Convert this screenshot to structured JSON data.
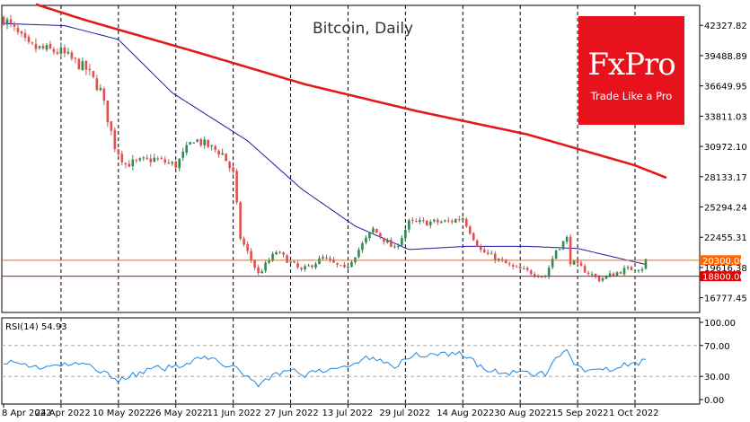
{
  "brand": {
    "name": "FxPro",
    "tagline": "Trade Like a Pro",
    "color": "#e8121d"
  },
  "chart_data": {
    "type": "candlestick",
    "title": "Bitcoin, Daily",
    "price_axis": {
      "ticks": [
        "42327.82",
        "39488.89",
        "36649.95",
        "33811.03",
        "30972.10",
        "28133.17",
        "25294.24",
        "22455.31",
        "19616.38",
        "16777.45"
      ],
      "range": [
        15400,
        44200
      ]
    },
    "levels": [
      {
        "label": "20300.00",
        "value": 20300,
        "color": "#ff6600"
      },
      {
        "label": "18800.00",
        "value": 18800,
        "color": "#e00000"
      }
    ],
    "x_labels": [
      "8 Apr 2022",
      "24 Apr 2022",
      "10 May 2022",
      "26 May 2022",
      "11 Jun 2022",
      "27 Jun 2022",
      "13 Jul 2022",
      "29 Jul 2022",
      "14 Aug 2022",
      "30 Aug 2022",
      "15 Sep 2022",
      "1 Oct 2022"
    ],
    "colors": {
      "up": "#2e8b57",
      "down": "#e05050",
      "ma_slow": "#e41a1a",
      "ma_fast": "#1a1aa0",
      "rsi": "#1e88e5"
    },
    "rsi": {
      "label": "RSI(14) 54.93",
      "ticks": [
        "100.00",
        "70.00",
        "30.00",
        "0.00"
      ],
      "levels": [
        70,
        30
      ]
    },
    "anchors": [
      {
        "date": "2022-04-08",
        "price": 43000
      },
      {
        "date": "2022-04-15",
        "price": 40300
      },
      {
        "date": "2022-04-24",
        "price": 39800
      },
      {
        "date": "2022-05-01",
        "price": 38200
      },
      {
        "date": "2022-05-05",
        "price": 36200
      },
      {
        "date": "2022-05-09",
        "price": 31000
      },
      {
        "date": "2022-05-12",
        "price": 29300
      },
      {
        "date": "2022-05-20",
        "price": 29800
      },
      {
        "date": "2022-05-26",
        "price": 29200
      },
      {
        "date": "2022-05-31",
        "price": 31700
      },
      {
        "date": "2022-06-08",
        "price": 30300
      },
      {
        "date": "2022-06-11",
        "price": 28400
      },
      {
        "date": "2022-06-13",
        "price": 22400
      },
      {
        "date": "2022-06-18",
        "price": 19000
      },
      {
        "date": "2022-06-23",
        "price": 21100
      },
      {
        "date": "2022-06-30",
        "price": 19300
      },
      {
        "date": "2022-07-06",
        "price": 20500
      },
      {
        "date": "2022-07-12",
        "price": 19400
      },
      {
        "date": "2022-07-20",
        "price": 23200
      },
      {
        "date": "2022-07-26",
        "price": 21300
      },
      {
        "date": "2022-07-30",
        "price": 23800
      },
      {
        "date": "2022-08-10",
        "price": 23900
      },
      {
        "date": "2022-08-14",
        "price": 24300
      },
      {
        "date": "2022-08-19",
        "price": 21200
      },
      {
        "date": "2022-08-28",
        "price": 19600
      },
      {
        "date": "2022-09-06",
        "price": 18800
      },
      {
        "date": "2022-09-09",
        "price": 21300
      },
      {
        "date": "2022-09-12",
        "price": 22300
      },
      {
        "date": "2022-09-13",
        "price": 20200
      },
      {
        "date": "2022-09-21",
        "price": 18500
      },
      {
        "date": "2022-09-28",
        "price": 19400
      },
      {
        "date": "2022-10-03",
        "price": 19600
      },
      {
        "date": "2022-10-04",
        "price": 20300
      }
    ],
    "ma_slow": [
      {
        "date": "2022-04-17",
        "price": 44300
      },
      {
        "date": "2022-05-01",
        "price": 42800
      },
      {
        "date": "2022-06-01",
        "price": 39800
      },
      {
        "date": "2022-07-01",
        "price": 36800
      },
      {
        "date": "2022-08-01",
        "price": 34300
      },
      {
        "date": "2022-09-01",
        "price": 32100
      },
      {
        "date": "2022-10-01",
        "price": 29200
      },
      {
        "date": "2022-10-10",
        "price": 28000
      }
    ],
    "ma_fast": [
      {
        "date": "2022-04-08",
        "price": 42500
      },
      {
        "date": "2022-04-25",
        "price": 42300
      },
      {
        "date": "2022-05-10",
        "price": 41000
      },
      {
        "date": "2022-05-25",
        "price": 36000
      },
      {
        "date": "2022-06-15",
        "price": 31500
      },
      {
        "date": "2022-06-30",
        "price": 27000
      },
      {
        "date": "2022-07-15",
        "price": 23500
      },
      {
        "date": "2022-07-30",
        "price": 21300
      },
      {
        "date": "2022-08-15",
        "price": 21600
      },
      {
        "date": "2022-09-01",
        "price": 21600
      },
      {
        "date": "2022-09-15",
        "price": 21400
      },
      {
        "date": "2022-10-04",
        "price": 19900
      }
    ],
    "rsi_anchors": [
      {
        "date": "2022-04-08",
        "value": 50
      },
      {
        "date": "2022-04-18",
        "value": 42
      },
      {
        "date": "2022-05-01",
        "value": 46
      },
      {
        "date": "2022-05-10",
        "value": 26
      },
      {
        "date": "2022-05-20",
        "value": 40
      },
      {
        "date": "2022-05-26",
        "value": 42
      },
      {
        "date": "2022-06-02",
        "value": 56
      },
      {
        "date": "2022-06-10",
        "value": 44
      },
      {
        "date": "2022-06-18",
        "value": 20
      },
      {
        "date": "2022-06-26",
        "value": 40
      },
      {
        "date": "2022-07-01",
        "value": 32
      },
      {
        "date": "2022-07-10",
        "value": 40
      },
      {
        "date": "2022-07-20",
        "value": 56
      },
      {
        "date": "2022-07-26",
        "value": 44
      },
      {
        "date": "2022-08-01",
        "value": 58
      },
      {
        "date": "2022-08-14",
        "value": 60
      },
      {
        "date": "2022-08-20",
        "value": 38
      },
      {
        "date": "2022-08-28",
        "value": 34
      },
      {
        "date": "2022-09-06",
        "value": 34
      },
      {
        "date": "2022-09-09",
        "value": 52
      },
      {
        "date": "2022-09-12",
        "value": 62
      },
      {
        "date": "2022-09-14",
        "value": 42
      },
      {
        "date": "2022-09-21",
        "value": 36
      },
      {
        "date": "2022-09-28",
        "value": 44
      },
      {
        "date": "2022-10-02",
        "value": 46
      },
      {
        "date": "2022-10-04",
        "value": 55
      }
    ]
  }
}
